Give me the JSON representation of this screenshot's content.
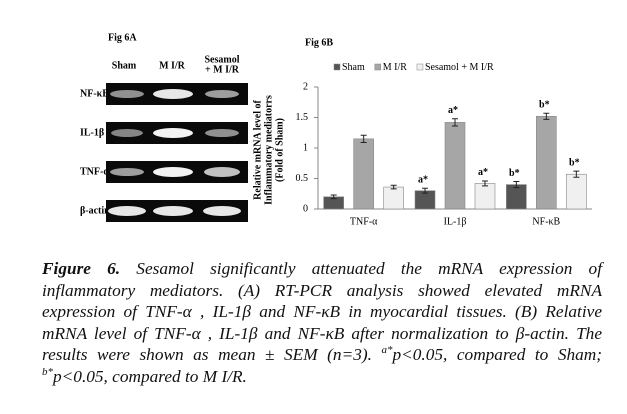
{
  "figure_a": {
    "title": "Fig 6A",
    "columns": [
      "Sham",
      "M I/R",
      "Sesamol",
      "+ M I/R"
    ],
    "rows": [
      "NF-κB",
      "IL-1β",
      "TNF-α",
      "β-actin"
    ]
  },
  "chart_data": {
    "type": "bar",
    "title": "Fig 6B",
    "categories": [
      "TNF-α",
      "IL-1β",
      "NF-κB"
    ],
    "ylabel": [
      "Relative mRNA level of",
      "Inflammatory mediatorrs",
      "(Fold of Sham)"
    ],
    "series": [
      {
        "name": "Sham",
        "color": "#555555",
        "values": [
          0.2,
          0.3,
          0.4
        ],
        "errors": [
          0.03,
          0.04,
          0.05
        ],
        "significance": [
          null,
          "a*",
          "b*"
        ]
      },
      {
        "name": "M I/R",
        "color": "#a6a6a6",
        "values": [
          1.15,
          1.42,
          1.52
        ],
        "errors": [
          0.06,
          0.06,
          0.05
        ],
        "significance": [
          null,
          "a*",
          "b*"
        ]
      },
      {
        "name": "Sesamol + M I/R",
        "color": "#f0f0f0",
        "values": [
          0.36,
          0.42,
          0.57
        ],
        "errors": [
          0.03,
          0.04,
          0.05
        ],
        "significance": [
          null,
          "a*",
          "b*"
        ]
      }
    ],
    "ylim": [
      0,
      2
    ],
    "yticks": [
      0,
      0.5,
      1,
      1.5,
      2
    ],
    "legend": "top"
  },
  "caption": {
    "label": "Figure 6.",
    "text1": " Sesamol significantly attenuated the mRNA expression of inflammatory mediators. (A) RT-PCR analysis showed elevated mRNA expression of TNF-α , IL-1β and NF-κB in myocardial tissues. (B) Relative mRNA level of TNF-α , IL-1β and NF-κB after normalization to β-actin. The results were shown as mean ± SEM (n=3). ",
    "sup1": "a*",
    "text2": "p<0.05, compared to Sham; ",
    "sup2": "b*",
    "text3": "p<0.05, compared to M I/R."
  }
}
